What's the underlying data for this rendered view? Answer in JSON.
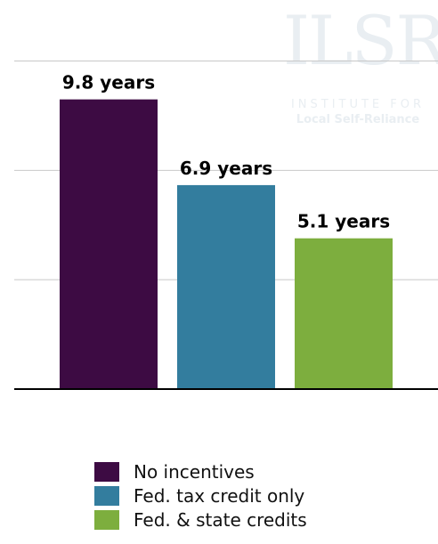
{
  "watermark": {
    "logo": "ILSR",
    "line1": "INSTITUTE FOR",
    "line2": "Local Self-Reliance"
  },
  "chart_data": {
    "type": "bar",
    "categories": [
      "No incentives",
      "Fed. tax credit only",
      "Fed. & state credits"
    ],
    "values": [
      9.8,
      6.9,
      5.1
    ],
    "data_labels": [
      "9.8 years",
      "6.9 years",
      "5.1 years"
    ],
    "colors": [
      "#3d0b43",
      "#337d9e",
      "#7dae3e"
    ],
    "ylim": [
      0,
      11
    ],
    "gridlines": [
      3.7,
      7.4,
      11.1
    ],
    "grid": true,
    "legend_position": "bottom",
    "title": "",
    "xlabel": "",
    "ylabel": ""
  },
  "legend": {
    "items": [
      {
        "label": "No incentives",
        "color": "#3d0b43"
      },
      {
        "label": "Fed. tax credit only",
        "color": "#337d9e"
      },
      {
        "label": "Fed. & state credits",
        "color": "#7dae3e"
      }
    ]
  }
}
